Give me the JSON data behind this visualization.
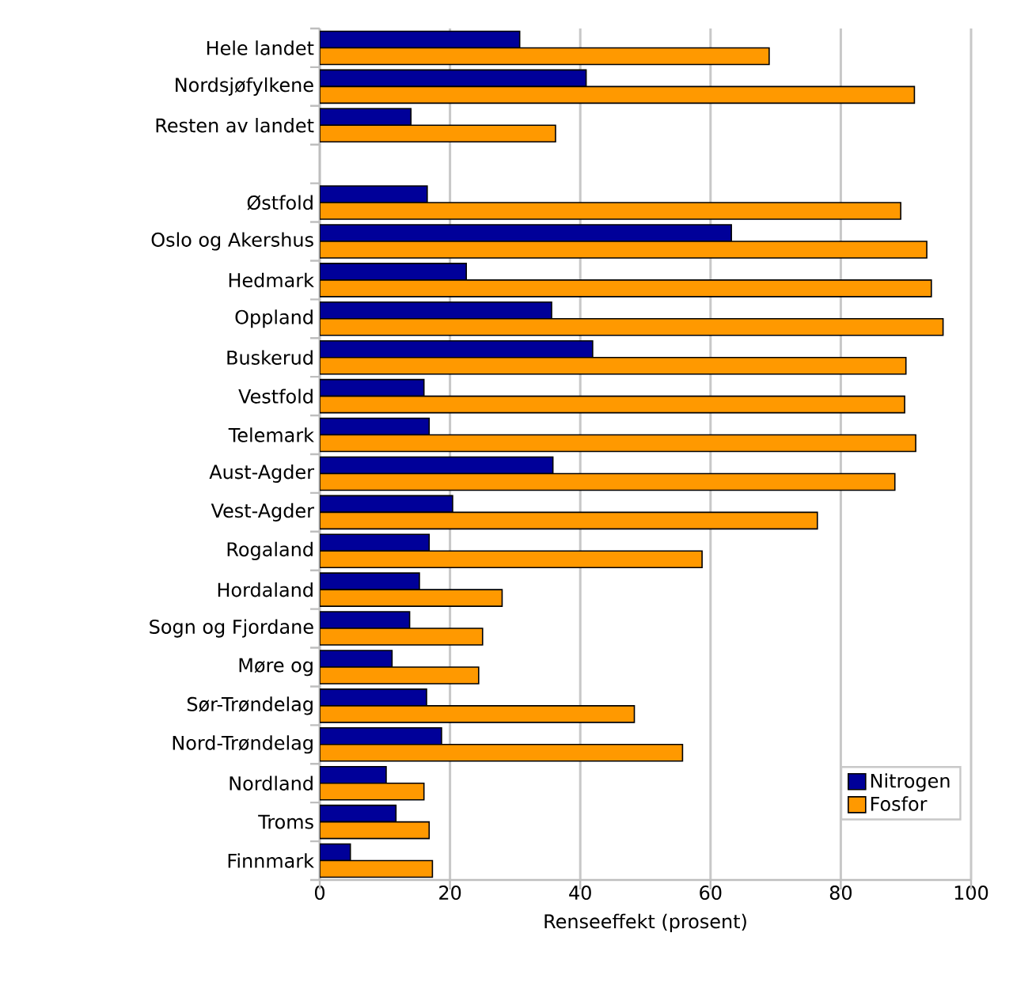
{
  "chart_data": {
    "type": "bar",
    "orientation": "horizontal",
    "categories": [
      "Hele landet",
      "Nordsjøfylkene",
      "Resten av landet",
      null,
      "Østfold",
      "Oslo og Akershus",
      "Hedmark",
      "Oppland",
      "Buskerud",
      "Vestfold",
      "Telemark",
      "Aust-Agder",
      "Vest-Agder",
      "Rogaland",
      "Hordaland",
      "Sogn og Fjordane",
      "Møre og",
      "Sør-Trøndelag",
      "Nord-Trøndelag",
      "Nordland",
      "Troms",
      "Finnmark"
    ],
    "series": [
      {
        "name": "Nitrogen",
        "color": "#000099",
        "values": [
          30.7,
          40.9,
          14.0,
          null,
          16.5,
          63.2,
          22.5,
          35.6,
          41.9,
          16.0,
          16.8,
          35.8,
          20.4,
          16.8,
          15.3,
          13.8,
          11.1,
          16.4,
          18.7,
          10.2,
          11.7,
          4.7
        ]
      },
      {
        "name": "Fosfor",
        "color": "#ff9900",
        "values": [
          69.0,
          91.3,
          36.2,
          null,
          89.2,
          93.2,
          93.9,
          95.7,
          90.0,
          89.8,
          91.5,
          88.3,
          76.4,
          58.7,
          28.0,
          25.0,
          24.4,
          48.3,
          55.7,
          16.0,
          16.8,
          17.3
        ]
      }
    ],
    "xlabel": "Renseeffekt (prosent)",
    "xlim": [
      0,
      100
    ],
    "xticks": [
      0,
      20,
      40,
      60,
      80,
      100
    ],
    "grid": "x",
    "legend": "bottom right"
  }
}
